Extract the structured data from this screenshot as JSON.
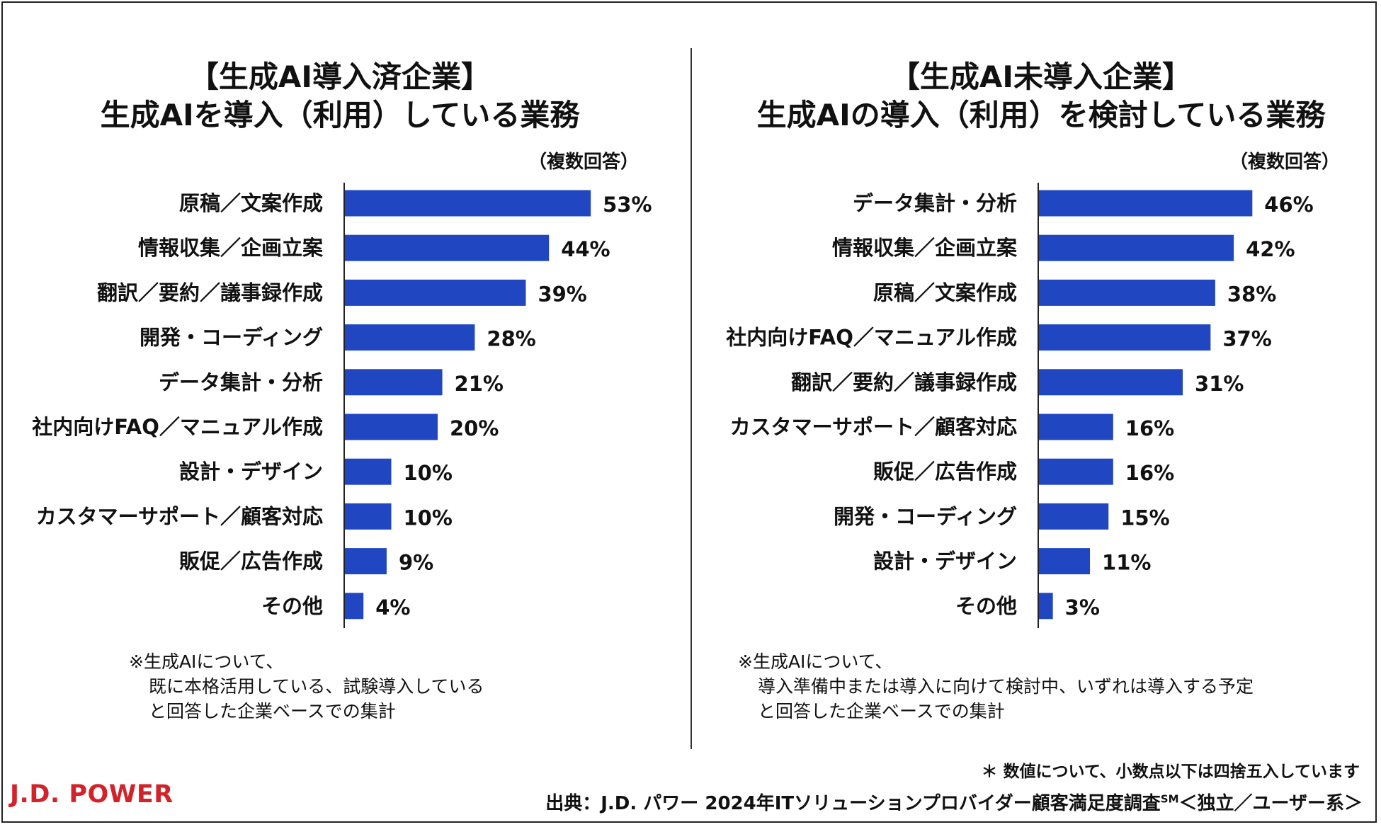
{
  "colors": {
    "bar": "#2046c2",
    "logo": "#d2232a",
    "axis": "#222222"
  },
  "left_panel": {
    "title_line1": "【生成AI導入済企業】",
    "title_line2": "生成AIを導入（利用）している業務",
    "multi_answer": "（複数回答）",
    "footnote_line1": "※生成AIについて、",
    "footnote_line2": "既に本格活用している、試験導入している",
    "footnote_line3": "と回答した企業ベースでの集計"
  },
  "right_panel": {
    "title_line1": "【生成AI未導入企業】",
    "title_line2": "生成AIの導入（利用）を検討している業務",
    "multi_answer": "（複数回答）",
    "footnote_line1": "※生成AIについて、",
    "footnote_line2": "導入準備中または導入に向けて検討中、いずれは導入する予定",
    "footnote_line3": "と回答した企業ベースでの集計"
  },
  "rounding_note": "＊ 数値について、小数点以下は四捨五入しています",
  "source": {
    "text": "出典：J.D. パワー 2024年ITソリューションプロバイダー顧客満足度調査",
    "superscript": "SM",
    "suffix": "＜独立／ユーザー系＞"
  },
  "logo_text": "J.D. POWER",
  "chart_data": [
    {
      "type": "bar",
      "orientation": "horizontal",
      "title": "生成AIを導入（利用）している業務",
      "categories": [
        "原稿／文案作成",
        "情報収集／企画立案",
        "翻訳／要約／議事録作成",
        "開発・コーディング",
        "データ集計・分析",
        "社内向けFAQ／マニュアル作成",
        "設計・デザイン",
        "カスタマーサポート／顧客対応",
        "販促／広告作成",
        "その他"
      ],
      "values": [
        53,
        44,
        39,
        28,
        21,
        20,
        10,
        10,
        9,
        4
      ],
      "value_labels": [
        "53%",
        "44%",
        "39%",
        "28%",
        "21%",
        "20%",
        "10%",
        "10%",
        "9%",
        "4%"
      ],
      "unit": "%",
      "xlim": [
        0,
        100
      ],
      "grid": false
    },
    {
      "type": "bar",
      "orientation": "horizontal",
      "title": "生成AIの導入（利用）を検討している業務",
      "categories": [
        "データ集計・分析",
        "情報収集／企画立案",
        "原稿／文案作成",
        "社内向けFAQ／マニュアル作成",
        "翻訳／要約／議事録作成",
        "カスタマーサポート／顧客対応",
        "販促／広告作成",
        "開発・コーディング",
        "設計・デザイン",
        "その他"
      ],
      "values": [
        46,
        42,
        38,
        37,
        31,
        16,
        16,
        15,
        11,
        3
      ],
      "value_labels": [
        "46%",
        "42%",
        "38%",
        "37%",
        "31%",
        "16%",
        "16%",
        "15%",
        "11%",
        "3%"
      ],
      "unit": "%",
      "xlim": [
        0,
        100
      ],
      "grid": false
    }
  ]
}
